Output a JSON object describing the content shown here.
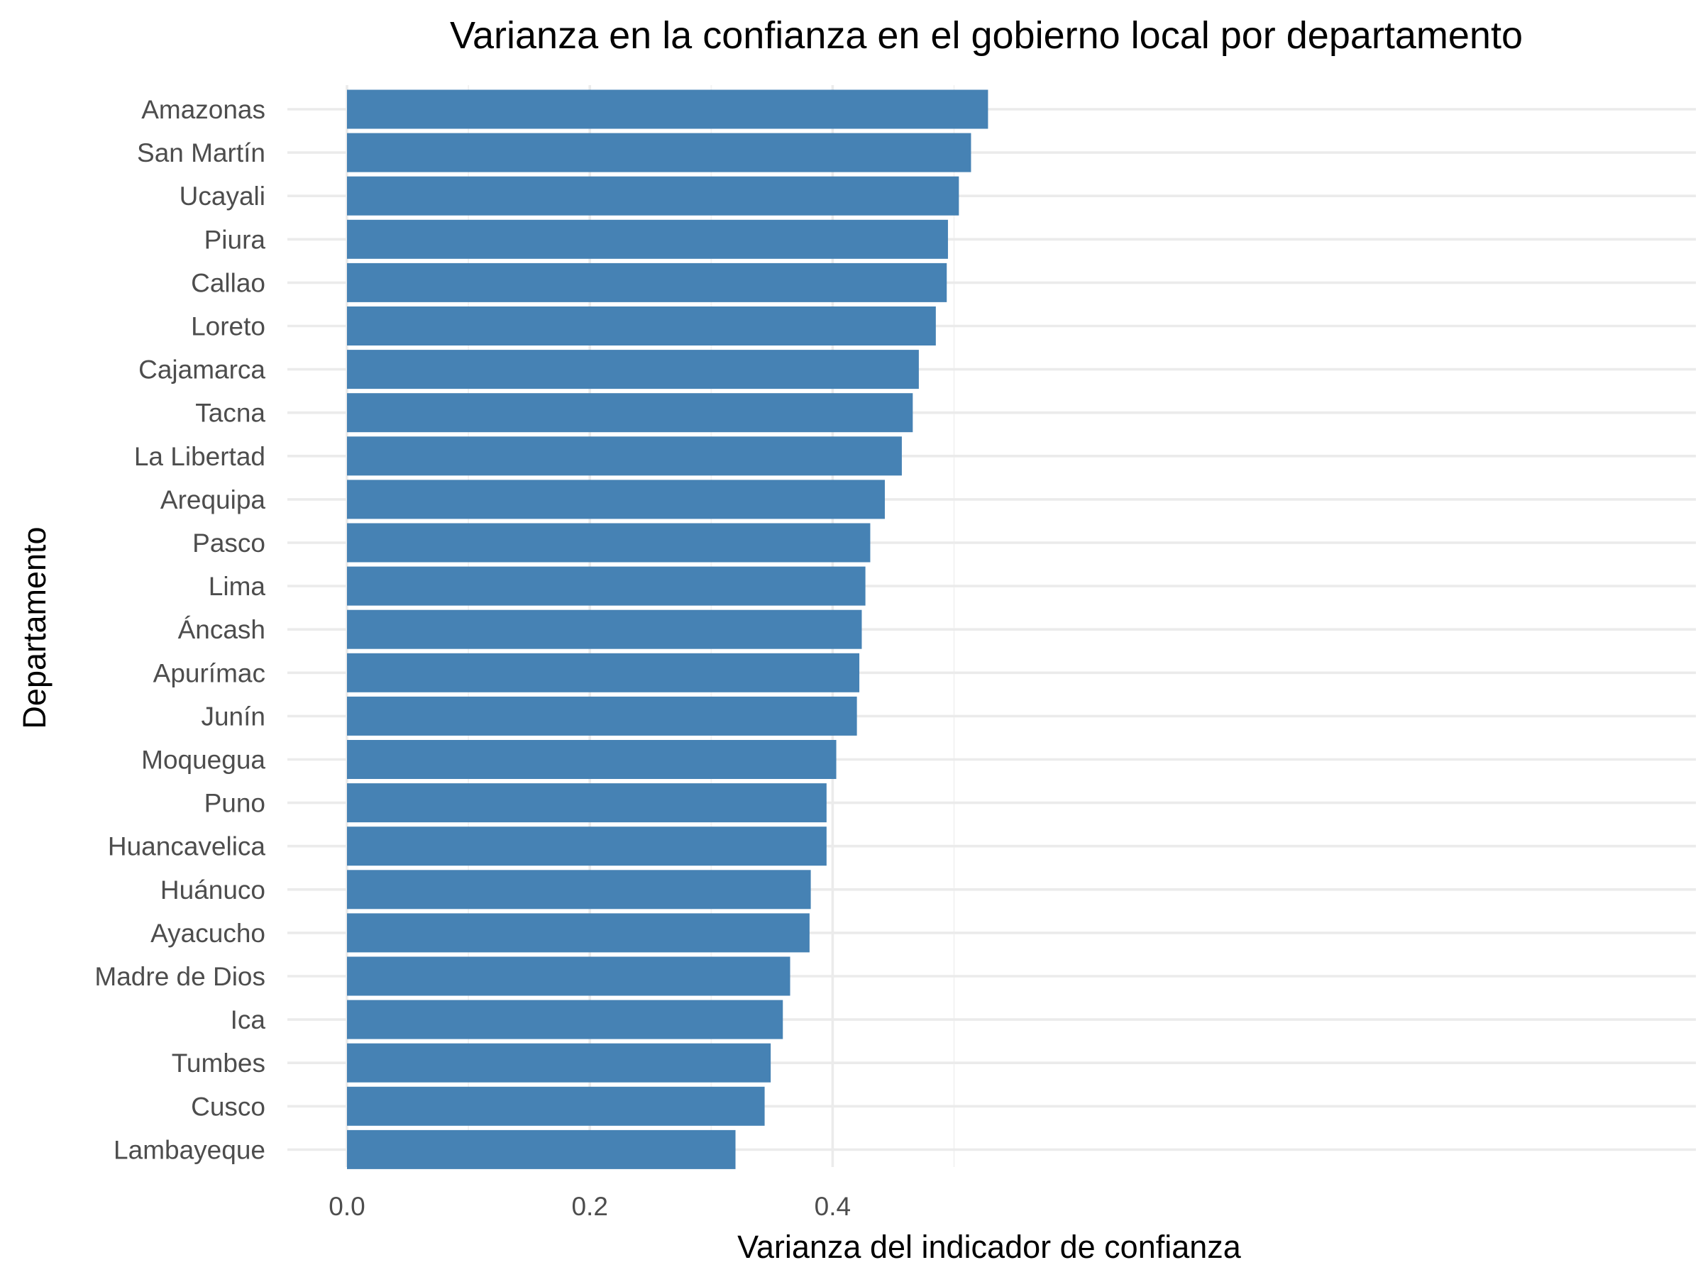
{
  "chart_data": {
    "type": "bar",
    "orientation": "horizontal",
    "title": "Varianza en la confianza en el gobierno local por departamento",
    "xlabel": "Varianza del indicador de confianza",
    "ylabel": "Departamento",
    "xlim": [
      0,
      0.553
    ],
    "xticks": [
      0.0,
      0.2,
      0.4
    ],
    "xtick_labels": [
      "0.0",
      "0.2",
      "0.4"
    ],
    "grid": true,
    "bar_color": "#4682B4",
    "categories": [
      "Amazonas",
      "San Martín",
      "Ucayali",
      "Piura",
      "Callao",
      "Loreto",
      "Cajamarca",
      "Tacna",
      "La Libertad",
      "Arequipa",
      "Pasco",
      "Lima",
      "Áncash",
      "Apurímac",
      "Junín",
      "Moquegua",
      "Puno",
      "Huancavelica",
      "Huánuco",
      "Ayacucho",
      "Madre de Dios",
      "Ica",
      "Tumbes",
      "Cusco",
      "Lambayeque"
    ],
    "values": [
      0.528,
      0.514,
      0.504,
      0.495,
      0.494,
      0.485,
      0.471,
      0.466,
      0.457,
      0.443,
      0.431,
      0.427,
      0.424,
      0.422,
      0.42,
      0.403,
      0.395,
      0.395,
      0.382,
      0.381,
      0.365,
      0.359,
      0.349,
      0.344,
      0.32
    ]
  }
}
